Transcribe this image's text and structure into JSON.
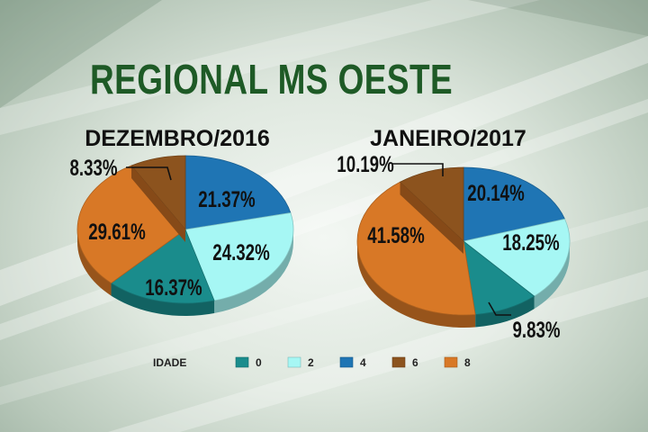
{
  "title": "REGIONAL MS OESTE",
  "legend": {
    "title": "IDADE",
    "items": [
      {
        "label": "0",
        "color": "#1a8c8c"
      },
      {
        "label": "2",
        "color": "#a6f7f4"
      },
      {
        "label": "4",
        "color": "#1f75b4"
      },
      {
        "label": "6",
        "color": "#8c531e"
      },
      {
        "label": "8",
        "color": "#d87826"
      }
    ]
  },
  "chart_data": [
    {
      "type": "pie",
      "title": "DEZEMBRO/2016",
      "categories": [
        "0",
        "2",
        "4",
        "6",
        "8"
      ],
      "values": [
        16.37,
        24.32,
        21.37,
        8.33,
        29.61
      ],
      "labels": [
        "16.37%",
        "24.32%",
        "21.37%",
        "8.33%",
        "29.61%"
      ]
    },
    {
      "type": "pie",
      "title": "JANEIRO/2017",
      "categories": [
        "0",
        "2",
        "4",
        "6",
        "8"
      ],
      "values": [
        9.83,
        18.25,
        20.14,
        10.19,
        41.58
      ],
      "labels": [
        "9.83%",
        "18.25%",
        "20.14%",
        "10.19%",
        "41.58%"
      ]
    }
  ]
}
